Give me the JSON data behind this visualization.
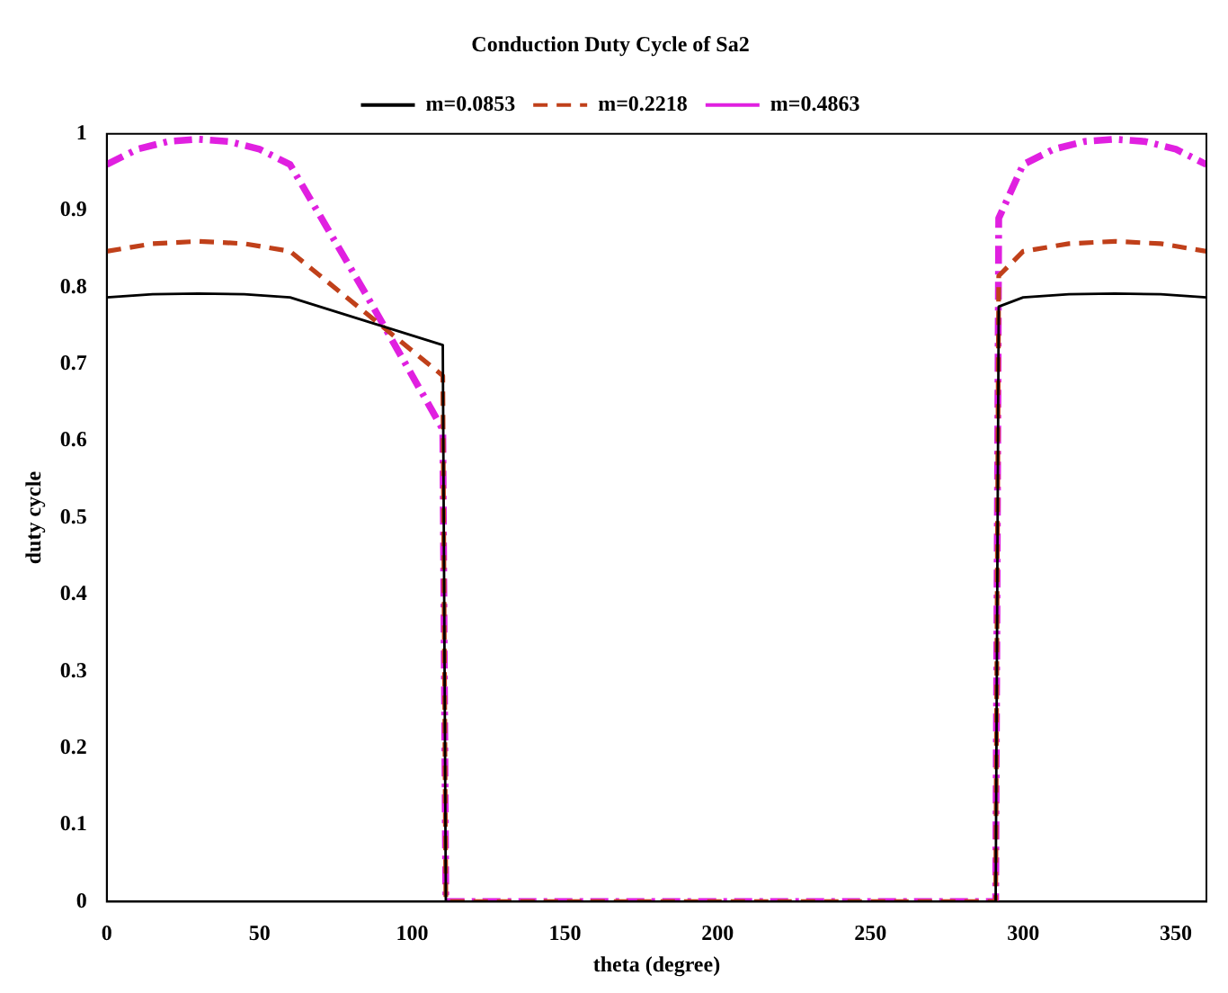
{
  "chart_data": {
    "type": "line",
    "title": "Conduction Duty Cycle of Sa2",
    "xlabel": "theta (degree)",
    "ylabel": "duty cycle",
    "xlim": [
      0,
      360
    ],
    "xticks": [
      0,
      50,
      100,
      150,
      200,
      250,
      300,
      350
    ],
    "ylim": [
      0,
      1
    ],
    "yticks": [
      0,
      0.1,
      0.2,
      0.3,
      0.4,
      0.5,
      0.6,
      0.7,
      0.8,
      0.9,
      1
    ],
    "grid": false,
    "legend": "top",
    "marker": "none",
    "series": [
      {
        "name": "m=0.0853",
        "color": "#000000",
        "line_style": "solid",
        "x": [
          0,
          15,
          30,
          45,
          60,
          85,
          110,
          111,
          200,
          291,
          292,
          300,
          315,
          330,
          345,
          360
        ],
        "values": [
          0.787,
          0.791,
          0.792,
          0.791,
          0.787,
          0.756,
          0.725,
          0,
          0,
          0,
          0.775,
          0.787,
          0.791,
          0.792,
          0.791,
          0.787
        ]
      },
      {
        "name": "m=0.2218",
        "color": "#c0401a",
        "line_style": "dashed",
        "x": [
          0,
          15,
          30,
          45,
          60,
          85,
          110,
          111,
          200,
          291,
          292,
          300,
          315,
          330,
          345,
          360
        ],
        "values": [
          0.847,
          0.857,
          0.86,
          0.857,
          0.847,
          0.766,
          0.685,
          0,
          0,
          0,
          0.815,
          0.847,
          0.857,
          0.86,
          0.857,
          0.847
        ]
      },
      {
        "name": "m=0.4863",
        "color": "#e020e0",
        "line_style": "dashdot",
        "x": [
          0,
          10,
          20,
          30,
          40,
          50,
          60,
          85,
          110,
          111,
          200,
          291,
          292,
          300,
          310,
          320,
          330,
          340,
          350,
          360
        ],
        "values": [
          0.96,
          0.98,
          0.99,
          0.993,
          0.99,
          0.98,
          0.96,
          0.79,
          0.615,
          0,
          0,
          0,
          0.89,
          0.96,
          0.98,
          0.99,
          0.993,
          0.99,
          0.98,
          0.96
        ]
      }
    ]
  }
}
